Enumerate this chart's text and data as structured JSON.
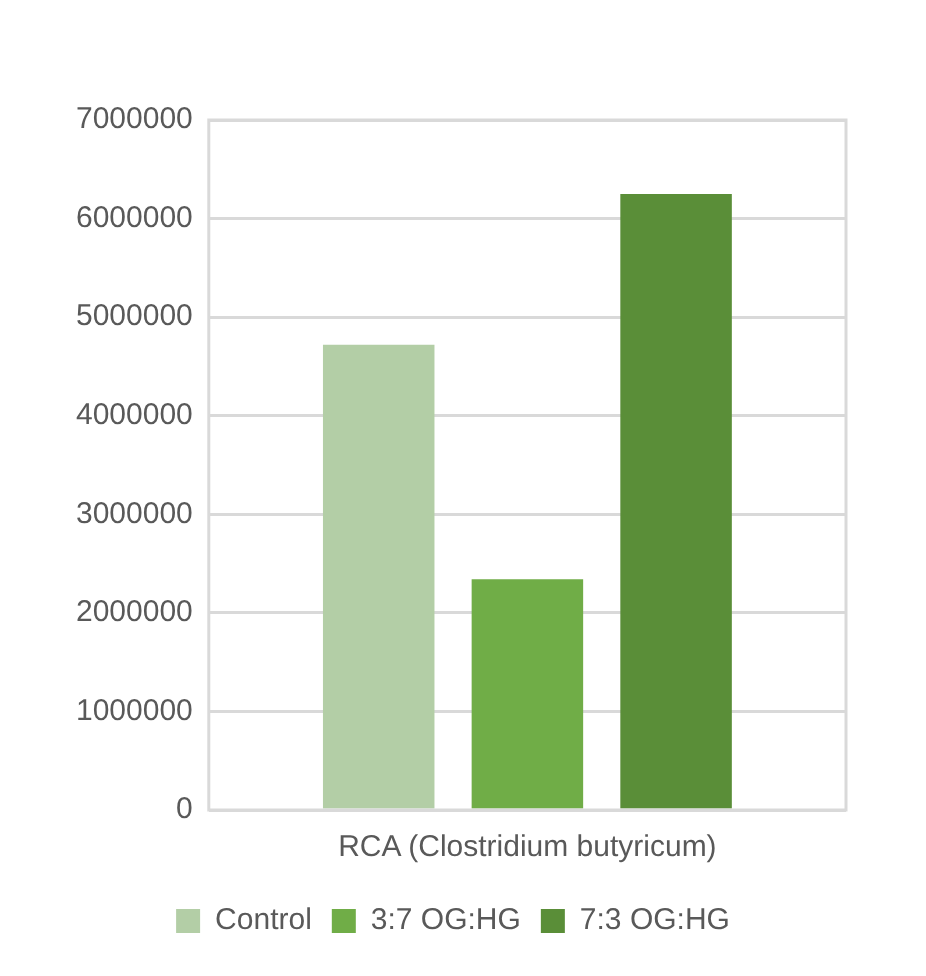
{
  "chart_data": {
    "type": "bar",
    "categories": [
      "RCA (Clostridium butyricum)"
    ],
    "series": [
      {
        "name": "Control",
        "color": "#b3cea6",
        "values": [
          4720000
        ]
      },
      {
        "name": "3:7 OG:HG",
        "color": "#70ad47",
        "values": [
          2340000
        ]
      },
      {
        "name": "7:3 OG:HG",
        "color": "#5a8e38",
        "values": [
          6250000
        ]
      }
    ],
    "ylim": [
      0,
      7000000
    ],
    "yticks": [
      0,
      1000000,
      2000000,
      3000000,
      4000000,
      5000000,
      6000000,
      7000000
    ],
    "grid": "y",
    "legend": "bottom"
  }
}
